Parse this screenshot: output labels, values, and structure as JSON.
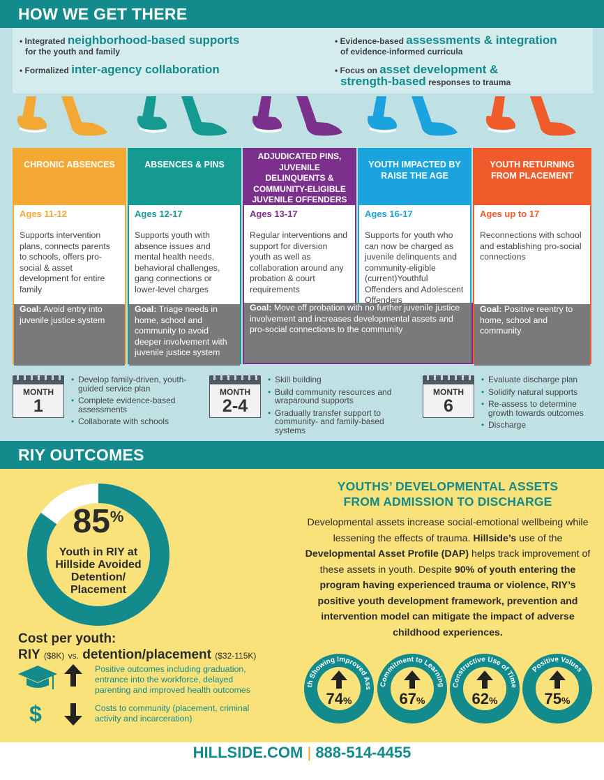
{
  "colors": {
    "teal": "#138a8c",
    "yellow_orange": "#f3a833",
    "teal_green": "#159a92",
    "purple": "#7b318c",
    "sky_blue": "#1aa3dd",
    "orange_red": "#ef5b2b",
    "goal_gray": "#7a7a7c",
    "yellow_bg": "#fae27a"
  },
  "how_we_get_there": {
    "title": "HOW WE GET THERE",
    "intro": [
      {
        "pre": "• Integrated ",
        "em": "neighborhood-based supports",
        "post": "for the youth and family"
      },
      {
        "pre": "• Formalized ",
        "em": "inter-agency collaboration",
        "post": ""
      },
      {
        "pre": "• Evidence-based ",
        "em": "assessments & integration",
        "post": "of evidence-informed curricula"
      },
      {
        "pre": "• Focus on ",
        "em": "asset development &",
        "em2": "strength-based",
        "post": " responses to trauma"
      }
    ],
    "columns": [
      {
        "heading": "CHRONIC ABSENCES",
        "ages": "Ages 11-12",
        "desc": "Supports intervention plans, connects parents to schools, offers pro-social & asset development for entire family",
        "goal_label": "Goal:",
        "goal": " Avoid entry into juvenile justice system"
      },
      {
        "heading": "ABSENCES & PINS",
        "ages": "Ages 12-17",
        "desc": "Supports youth with absence issues and mental health needs, behavioral challenges, gang connections or lower-level charges",
        "goal_label": "Goal:",
        "goal": " Triage needs in home, school and community to avoid deeper involvement with juvenile justice system"
      },
      {
        "heading": "ADJUDICATED PINS, JUVENILE DELINQUENTS & COMMUNITY-ELIGIBLE JUVENILE OFFENDERS",
        "ages": "Ages 13-17",
        "desc": "Regular interventions and support for diversion youth as well as collaboration around any probation & court requirements",
        "goal_label": "Goal:",
        "goal": " Move off probation with no further juvenile justice involvement and increases developmental assets and pro-social connections to the community"
      },
      {
        "heading": "YOUTH IMPACTED BY RAISE THE AGE",
        "ages": "Ages 16-17",
        "desc": "Supports for youth who can now be charged as juvenile delinquents and community-eligible (current)Youthful Offenders and Adolescent Offenders",
        "goal_label": "",
        "goal": ""
      },
      {
        "heading": "YOUTH RETURNING FROM PLACEMENT",
        "ages": "Ages up to 17",
        "desc": "Reconnections with school and establishing pro-social connections",
        "goal_label": "Goal:",
        "goal": " Positive reentry to home, school and community"
      }
    ],
    "months": [
      {
        "label": "MONTH",
        "num": "1",
        "steps": [
          "Develop family-driven, youth-guided service plan",
          "Complete evidence-based assessments",
          "Collaborate with schools"
        ]
      },
      {
        "label": "MONTH",
        "num": "2-4",
        "steps": [
          "Skill building",
          "Build community resources and wraparound supports",
          "Gradually transfer support to community- and family-based systems"
        ]
      },
      {
        "label": "MONTH",
        "num": "6",
        "steps": [
          "Evaluate discharge plan",
          "Solidify natural supports",
          "Re-assess to determine growth towards outcomes",
          "Discharge"
        ]
      }
    ]
  },
  "outcomes": {
    "title": "RIY OUTCOMES",
    "donut": {
      "value": 85,
      "display": "85",
      "pct_sign": "%",
      "label": "Youth in RIY at Hillside Avoided Detention/ Placement"
    },
    "cost_title": "Cost per youth:",
    "cost_riy": "RIY",
    "cost_riy_amt": "($8K)",
    "cost_vs": "vs.",
    "cost_det": "detention/placement",
    "cost_det_amt": "($32-115K)",
    "positive": "Positive outcomes including graduation, entrance into the workforce, delayed parenting and improved health outcomes",
    "costs": "Costs to community (placement, criminal activity and incarceration)",
    "dollar": "$",
    "assets_title_1": "YOUTHS’ DEVELOPMENTAL ASSETS",
    "assets_title_2": "FROM ADMISSION TO DISCHARGE",
    "assets_body": {
      "p1": "Developmental assets increase social-emotional wellbeing while lessening the effects of trauma. ",
      "b1": "Hillside’s",
      "p2": " use of the ",
      "b2": "Developmental Asset Profile (DAP)",
      "p3": " helps track improvement of these assets in youth. Despite ",
      "b3": "90% of youth entering the program having experienced trauma or violence, RIY’s positive youth development framework, prevention and intervention model can mitigate the impact of adverse childhood experiences."
    },
    "badges": [
      {
        "label": "Youth Showing Improved Assets",
        "value": "74",
        "pct": "%"
      },
      {
        "label": "Commitment to Learning",
        "value": "67",
        "pct": "%"
      },
      {
        "label": "Constructive Use of Time",
        "value": "62",
        "pct": "%"
      },
      {
        "label": "Positive Values",
        "value": "75",
        "pct": "%"
      }
    ]
  },
  "footer": {
    "site": "HILLSIDE.COM",
    "sep": "|",
    "phone": "888-514-4455"
  }
}
